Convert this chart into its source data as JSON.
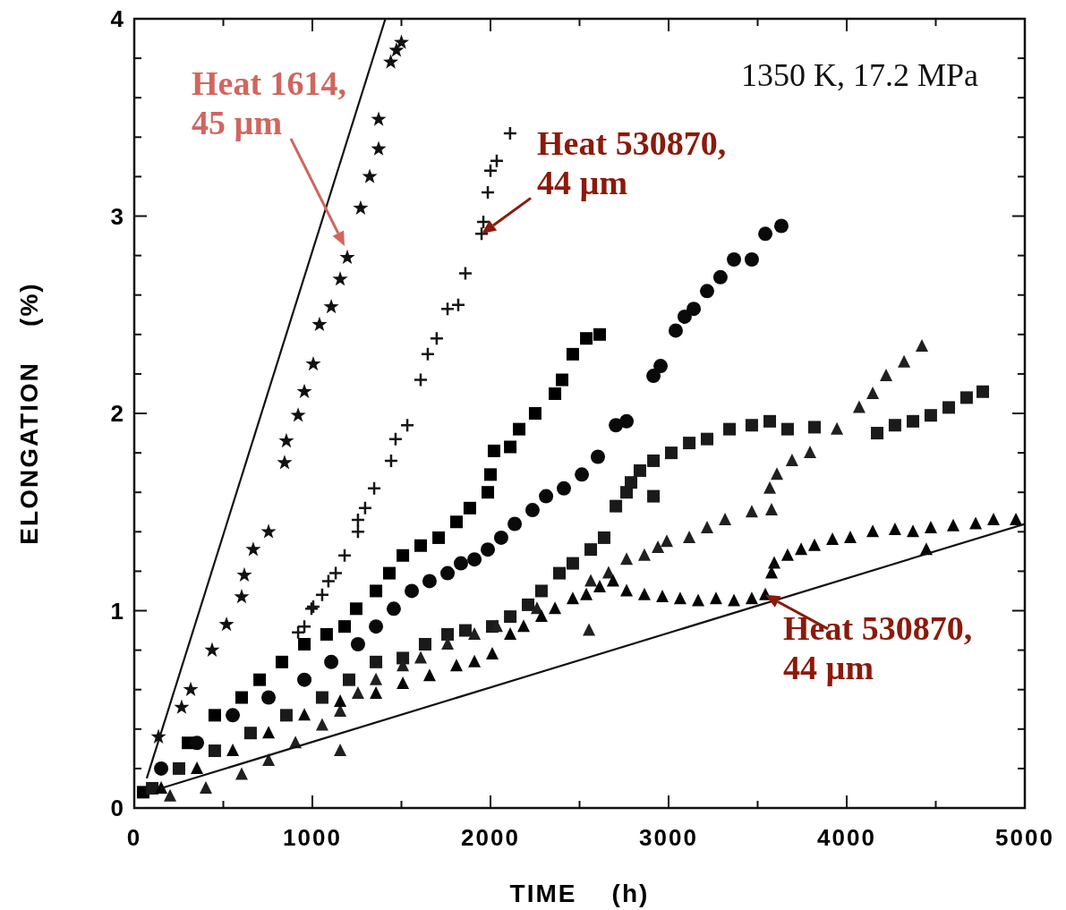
{
  "chart_data": {
    "type": "scatter",
    "xlabel": "TIME    (h)",
    "ylabel": "ELONGATION    (%)",
    "xlim": [
      0,
      5000
    ],
    "ylim": [
      0,
      4
    ],
    "xticks": [
      0,
      {
        "value": 500,
        "label": null
      },
      1000,
      {
        "value": 1500,
        "label": null
      },
      2000,
      {
        "value": 2500,
        "label": null
      },
      3000,
      {
        "value": 3500,
        "label": null
      },
      4000,
      {
        "value": 4500,
        "label": null
      },
      5000
    ],
    "yticks": [
      0,
      {
        "value": 0.2,
        "label": null
      },
      {
        "value": 0.4,
        "label": null
      },
      {
        "value": 0.6,
        "label": null
      },
      {
        "value": 0.8,
        "label": null
      },
      1,
      {
        "value": 1.2,
        "label": null
      },
      {
        "value": 1.4,
        "label": null
      },
      {
        "value": 1.6,
        "label": null
      },
      {
        "value": 1.8,
        "label": null
      },
      2,
      {
        "value": 2.2,
        "label": null
      },
      {
        "value": 2.4,
        "label": null
      },
      {
        "value": 2.6,
        "label": null
      },
      {
        "value": 2.8,
        "label": null
      },
      3,
      {
        "value": 3.2,
        "label": null
      },
      {
        "value": 3.4,
        "label": null
      },
      {
        "value": 3.6,
        "label": null
      },
      {
        "value": 3.8,
        "label": null
      },
      4
    ],
    "grid": false,
    "series": [
      {
        "marker": "star",
        "color": "#111111",
        "x": [
          136,
          266,
          317,
          437,
          518,
          603,
          618,
          668,
          754,
          844,
          854,
          920,
          955,
          1005,
          1040,
          1106,
          1156,
          1196,
          1271,
          1322,
          1372,
          1372,
          1440,
          1472,
          1500
        ],
        "values": [
          0.36,
          0.51,
          0.6,
          0.8,
          0.93,
          1.07,
          1.18,
          1.31,
          1.4,
          1.75,
          1.86,
          1.99,
          2.11,
          2.25,
          2.45,
          2.54,
          2.68,
          2.79,
          3.04,
          3.2,
          3.34,
          3.49,
          3.78,
          3.84,
          3.88
        ]
      },
      {
        "marker": "cross",
        "color": "#151515",
        "x": [
          920,
          955,
          995,
          1005,
          1055,
          1090,
          1131,
          1181,
          1256,
          1256,
          1296,
          1347,
          1442,
          1467,
          1533,
          1608,
          1648,
          1698,
          1759,
          1819,
          1859,
          1950,
          1960,
          1985,
          2000,
          2035,
          2110
        ],
        "values": [
          0.89,
          0.92,
          1.01,
          1.02,
          1.08,
          1.15,
          1.19,
          1.28,
          1.4,
          1.46,
          1.52,
          1.62,
          1.76,
          1.87,
          1.94,
          2.17,
          2.3,
          2.38,
          2.53,
          2.55,
          2.71,
          2.91,
          2.97,
          3.12,
          3.23,
          3.28,
          3.42
        ]
      },
      {
        "marker": "square",
        "color": "#000000",
        "x": [
          50,
          302,
          452,
          603,
          704,
          829,
          955,
          1080,
          1181,
          1246,
          1357,
          1432,
          1508,
          1608,
          1709,
          1809,
          1884,
          1985,
          2000,
          2020,
          2111,
          2161,
          2251,
          2362,
          2402,
          2462,
          2538,
          2613
        ],
        "values": [
          0.08,
          0.33,
          0.47,
          0.56,
          0.65,
          0.74,
          0.83,
          0.88,
          0.92,
          1.01,
          1.1,
          1.19,
          1.28,
          1.33,
          1.37,
          1.45,
          1.52,
          1.6,
          1.69,
          1.81,
          1.83,
          1.92,
          2.0,
          2.1,
          2.17,
          2.3,
          2.38,
          2.4
        ]
      },
      {
        "marker": "circle",
        "color": "#0a0a0a",
        "x": [
          151,
          352,
          553,
          754,
          955,
          1106,
          1256,
          1357,
          1457,
          1558,
          1658,
          1759,
          1834,
          1910,
          1985,
          2060,
          2136,
          2236,
          2312,
          2412,
          2513,
          2603,
          2704,
          2764,
          2915,
          2955,
          3040,
          3090,
          3141,
          3216,
          3291,
          3367,
          3467,
          3543,
          3633
        ],
        "values": [
          0.2,
          0.33,
          0.47,
          0.56,
          0.65,
          0.74,
          0.83,
          0.92,
          1.01,
          1.1,
          1.15,
          1.19,
          1.24,
          1.26,
          1.31,
          1.37,
          1.44,
          1.51,
          1.58,
          1.62,
          1.69,
          1.78,
          1.94,
          1.96,
          2.19,
          2.24,
          2.42,
          2.49,
          2.53,
          2.62,
          2.69,
          2.78,
          2.78,
          2.91,
          2.95
        ]
      },
      {
        "marker": "square",
        "color": "#1a1a1a",
        "x": [
          101,
          251,
          452,
          653,
          854,
          1055,
          1206,
          1357,
          1508,
          1633,
          1759,
          1859,
          2010,
          2111,
          2211,
          2286,
          2387,
          2462,
          2563,
          2638,
          2704,
          2764,
          2789,
          2839,
          2915,
          2915,
          3015,
          3116,
          3216,
          3342,
          3467,
          3568,
          3668,
          3819,
          4171,
          4271,
          4372,
          4472,
          4573,
          4673,
          4764
        ],
        "values": [
          0.1,
          0.2,
          0.29,
          0.38,
          0.47,
          0.56,
          0.65,
          0.74,
          0.76,
          0.83,
          0.88,
          0.9,
          0.92,
          0.97,
          1.03,
          1.1,
          1.19,
          1.24,
          1.31,
          1.37,
          1.53,
          1.6,
          1.65,
          1.71,
          1.58,
          1.76,
          1.8,
          1.85,
          1.87,
          1.92,
          1.94,
          1.96,
          1.92,
          1.93,
          1.9,
          1.94,
          1.96,
          1.99,
          2.03,
          2.08,
          2.11
        ]
      },
      {
        "marker": "triangle",
        "color": "#202020",
        "x": [
          201,
          402,
          603,
          754,
          905,
          1055,
          1156,
          1156,
          1256,
          1357,
          1508,
          1608,
          1759,
          1910,
          2035,
          2261,
          2553,
          2563,
          2663,
          2764,
          2864,
          2940,
          2990,
          3116,
          3216,
          3317,
          3467,
          3578,
          3568,
          3608,
          3693,
          3794,
          3945,
          4070,
          4146,
          4221,
          4322,
          4422
        ],
        "values": [
          0.06,
          0.1,
          0.17,
          0.24,
          0.33,
          0.42,
          0.49,
          0.29,
          0.58,
          0.65,
          0.72,
          0.76,
          0.83,
          0.88,
          0.92,
          1.01,
          0.9,
          1.15,
          1.19,
          1.26,
          1.28,
          1.32,
          1.35,
          1.37,
          1.42,
          1.46,
          1.5,
          1.51,
          1.62,
          1.69,
          1.76,
          1.8,
          1.92,
          2.03,
          2.1,
          2.19,
          2.26,
          2.34
        ]
      },
      {
        "marker": "triangle",
        "color": "#050505",
        "x": [
          151,
          352,
          553,
          754,
          955,
          1156,
          1357,
          1508,
          1658,
          1809,
          1910,
          2010,
          2111,
          2186,
          2286,
          2362,
          2462,
          2538,
          2613,
          2688,
          2764,
          2864,
          2965,
          3065,
          3166,
          3266,
          3367,
          3467,
          3543,
          3578,
          3593,
          3668,
          3744,
          3819,
          3920,
          4020,
          4146,
          4271,
          4372,
          4447,
          4472,
          4598,
          4724,
          4824,
          4950
        ],
        "values": [
          0.1,
          0.2,
          0.29,
          0.38,
          0.47,
          0.54,
          0.58,
          0.63,
          0.67,
          0.72,
          0.74,
          0.78,
          0.88,
          0.92,
          0.97,
          1.01,
          1.06,
          1.08,
          1.12,
          1.15,
          1.1,
          1.08,
          1.07,
          1.06,
          1.05,
          1.06,
          1.05,
          1.06,
          1.08,
          1.19,
          1.24,
          1.28,
          1.31,
          1.33,
          1.36,
          1.37,
          1.4,
          1.41,
          1.4,
          1.31,
          1.42,
          1.43,
          1.44,
          1.46,
          1.46
        ]
      },
      {
        "type": "line",
        "marker": "none",
        "line_style": "solid",
        "color": "#111111",
        "x": [
          70,
          1410
        ],
        "values": [
          0.15,
          4
        ]
      },
      {
        "type": "line",
        "marker": "none",
        "line_style": "solid",
        "color": "#111111",
        "x": [
          150,
          5000
        ],
        "values": [
          0.1,
          1.44
        ]
      }
    ],
    "annotations": [
      "1350 K, 17.2 MPa",
      "Heat 1614,\n45 µm",
      {
        "text": "Heat 530870,\n44 µm",
        "x": 1950,
        "y": 2.91
      },
      {
        "text": "Heat 530870,\n44 µm",
        "x": 3543,
        "y": 1.08
      }
    ]
  }
}
